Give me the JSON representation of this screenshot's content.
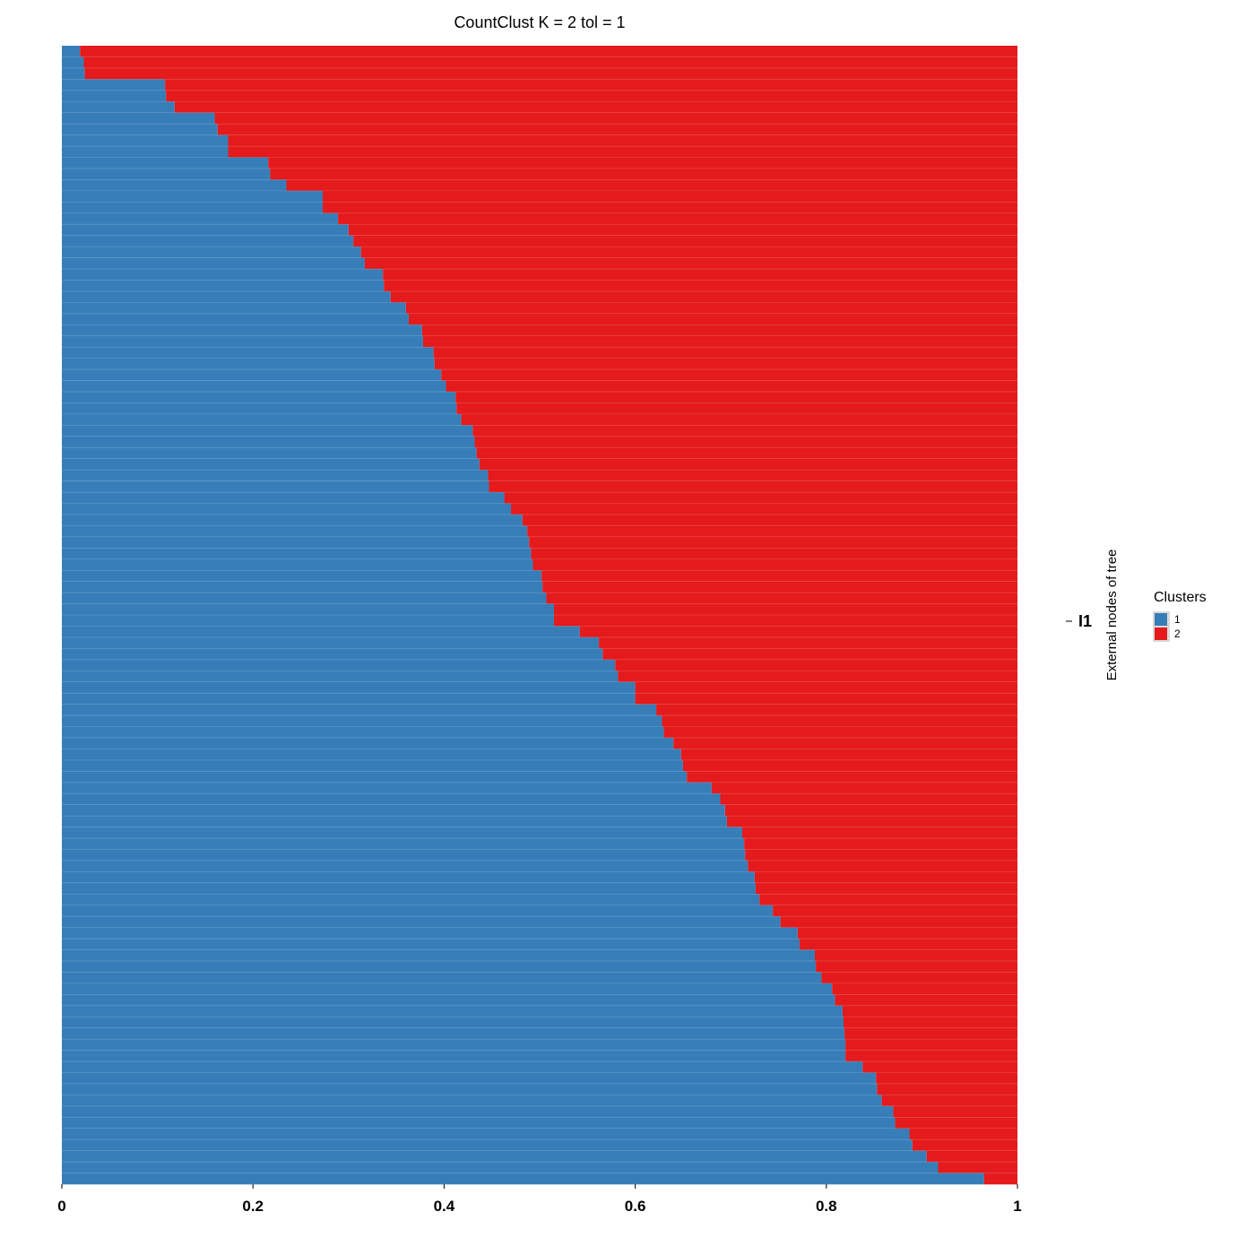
{
  "chart_data": {
    "type": "bar",
    "orientation": "horizontal-stacked",
    "title": "CountClust K =  2 tol =  1",
    "x_ticks": [
      "0",
      "0.2",
      "0.4",
      "0.6",
      "0.8",
      "1"
    ],
    "xlim": [
      0,
      1
    ],
    "y_axis_title": "External nodes of tree",
    "y_category": "I1",
    "legend": {
      "title": "Clusters",
      "placement": "right",
      "entries": [
        {
          "label": "1",
          "color": "#377EB8"
        },
        {
          "label": "2",
          "color": "#E41A1C"
        }
      ]
    },
    "series": [
      {
        "name": "1",
        "color": "#377EB8",
        "values": [
          0.019,
          0.023,
          0.024,
          0.108,
          0.109,
          0.118,
          0.16,
          0.163,
          0.174,
          0.174,
          0.216,
          0.218,
          0.235,
          0.273,
          0.273,
          0.289,
          0.3,
          0.305,
          0.313,
          0.317,
          0.336,
          0.337,
          0.344,
          0.36,
          0.363,
          0.377,
          0.378,
          0.389,
          0.39,
          0.397,
          0.402,
          0.412,
          0.413,
          0.418,
          0.43,
          0.432,
          0.434,
          0.437,
          0.446,
          0.447,
          0.463,
          0.47,
          0.482,
          0.487,
          0.489,
          0.491,
          0.493,
          0.502,
          0.503,
          0.507,
          0.515,
          0.515,
          0.542,
          0.562,
          0.566,
          0.579,
          0.582,
          0.6,
          0.6,
          0.622,
          0.628,
          0.63,
          0.64,
          0.648,
          0.65,
          0.654,
          0.68,
          0.689,
          0.694,
          0.696,
          0.712,
          0.714,
          0.715,
          0.718,
          0.725,
          0.726,
          0.73,
          0.744,
          0.752,
          0.77,
          0.772,
          0.788,
          0.789,
          0.795,
          0.806,
          0.809,
          0.817,
          0.818,
          0.819,
          0.82,
          0.82,
          0.838,
          0.852,
          0.853,
          0.858,
          0.87,
          0.872,
          0.887,
          0.89,
          0.905,
          0.917,
          0.965
        ]
      },
      {
        "name": "2",
        "color": "#E41A1C",
        "values": [
          0.981,
          0.977,
          0.976,
          0.892,
          0.891,
          0.882,
          0.84,
          0.837,
          0.826,
          0.826,
          0.784,
          0.782,
          0.765,
          0.727,
          0.727,
          0.711,
          0.7,
          0.695,
          0.687,
          0.683,
          0.664,
          0.663,
          0.656,
          0.64,
          0.637,
          0.623,
          0.622,
          0.611,
          0.61,
          0.603,
          0.598,
          0.588,
          0.587,
          0.582,
          0.57,
          0.568,
          0.566,
          0.563,
          0.554,
          0.553,
          0.537,
          0.53,
          0.518,
          0.513,
          0.511,
          0.509,
          0.507,
          0.498,
          0.497,
          0.493,
          0.485,
          0.485,
          0.458,
          0.438,
          0.434,
          0.421,
          0.418,
          0.4,
          0.4,
          0.378,
          0.372,
          0.37,
          0.36,
          0.352,
          0.35,
          0.346,
          0.32,
          0.311,
          0.306,
          0.304,
          0.288,
          0.286,
          0.285,
          0.282,
          0.275,
          0.274,
          0.27,
          0.256,
          0.248,
          0.23,
          0.228,
          0.212,
          0.211,
          0.205,
          0.194,
          0.191,
          0.183,
          0.182,
          0.181,
          0.18,
          0.18,
          0.162,
          0.148,
          0.147,
          0.142,
          0.13,
          0.128,
          0.113,
          0.11,
          0.095,
          0.083,
          0.035
        ]
      }
    ]
  }
}
